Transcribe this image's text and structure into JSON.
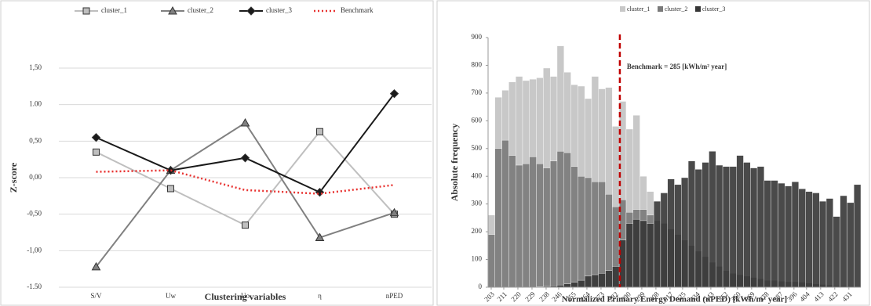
{
  "chart_data": [
    {
      "type": "line",
      "categories": [
        "S/V",
        "Uw",
        "Uo",
        "η",
        "nPED"
      ],
      "series": [
        {
          "name": "cluster_1",
          "color": "#bfbfbf",
          "marker": "square",
          "values": [
            0.35,
            -0.15,
            -0.65,
            0.63,
            -0.5
          ]
        },
        {
          "name": "cluster_2",
          "color": "#808080",
          "marker": "triangle",
          "values": [
            -1.22,
            0.1,
            0.75,
            -0.82,
            -0.48
          ]
        },
        {
          "name": "cluster_3",
          "color": "#1a1a1a",
          "marker": "diamond",
          "values": [
            0.55,
            0.1,
            0.27,
            -0.2,
            1.15
          ]
        },
        {
          "name": "Benchmark",
          "color": "#e8312f",
          "dash": "dotted",
          "values": [
            0.08,
            0.1,
            -0.17,
            -0.22,
            -0.1
          ]
        }
      ],
      "ylim": [
        -1.5,
        1.5
      ],
      "yticks": [
        {
          "value": -1.5,
          "label": "-1.50"
        },
        {
          "value": -1.0,
          "label": "-1,00"
        },
        {
          "value": -0.5,
          "label": "-0,50"
        },
        {
          "value": 0,
          "label": "0,00"
        },
        {
          "value": 0.5,
          "label": "0,50"
        },
        {
          "value": 1.0,
          "label": "1.00"
        },
        {
          "value": 1.5,
          "label": "1,50"
        }
      ],
      "ylabel": "Z-score",
      "xlabel": "Clustering variables",
      "grid": true,
      "legend": "top"
    },
    {
      "type": "histogram",
      "overlap": true,
      "bins": [
        201,
        205.4,
        209.8,
        214.2,
        218.6,
        223,
        227.4,
        231.8,
        236.2,
        240.6,
        245,
        249.4,
        253.8,
        258.2,
        262.6,
        267,
        271.4,
        275.8,
        280.2,
        284.6,
        289,
        293.4,
        297.8,
        302.2,
        306.6,
        311,
        315.4,
        319.8,
        324.2,
        328.6,
        333,
        337.4,
        341.8,
        346.2,
        350.6,
        355,
        359.4,
        363.8,
        368.2,
        372.6,
        377,
        381.4,
        385.8,
        390.2,
        394.6,
        399,
        403.4,
        407.8,
        412.2,
        416.6,
        421,
        425.4,
        429.8,
        434.2,
        438.6
      ],
      "series": [
        {
          "name": "cluster_1",
          "color": "#c8c8c8",
          "values": [
            260,
            685,
            710,
            740,
            760,
            745,
            750,
            755,
            790,
            760,
            870,
            775,
            730,
            725,
            680,
            760,
            715,
            720,
            580,
            670,
            570,
            620,
            400,
            345,
            200,
            150,
            100,
            60,
            30,
            20,
            10,
            5,
            3,
            2,
            0,
            0,
            0,
            0,
            0,
            0,
            0,
            0,
            0,
            0,
            0,
            0,
            0,
            0,
            0,
            0,
            0,
            0,
            0,
            0
          ]
        },
        {
          "name": "cluster_2",
          "color": "#7a7a7a",
          "values": [
            190,
            500,
            530,
            475,
            440,
            445,
            470,
            445,
            430,
            455,
            490,
            485,
            435,
            400,
            395,
            380,
            380,
            335,
            290,
            315,
            270,
            280,
            280,
            260,
            240,
            230,
            210,
            190,
            170,
            150,
            130,
            110,
            90,
            75,
            60,
            50,
            45,
            40,
            35,
            30,
            25,
            25,
            22,
            20,
            20,
            18,
            15,
            12,
            10,
            8,
            5,
            5,
            3,
            2
          ]
        },
        {
          "name": "cluster_3",
          "color": "#363636",
          "values": [
            0,
            0,
            0,
            0,
            0,
            0,
            0,
            2,
            3,
            5,
            8,
            12,
            18,
            25,
            40,
            45,
            50,
            60,
            75,
            170,
            230,
            245,
            240,
            230,
            310,
            340,
            390,
            370,
            395,
            455,
            425,
            450,
            490,
            440,
            435,
            435,
            475,
            450,
            430,
            435,
            385,
            385,
            375,
            365,
            380,
            355,
            345,
            340,
            310,
            320,
            255,
            330,
            305,
            370
          ]
        }
      ],
      "xlim": [
        201,
        438.6
      ],
      "xticks": [
        203,
        211,
        220,
        229,
        238,
        246,
        255,
        264,
        273,
        282,
        290,
        299,
        308,
        317,
        325,
        334,
        343,
        352,
        360,
        369,
        378,
        387,
        396,
        404,
        413,
        422,
        431
      ],
      "ylim": [
        0,
        900
      ],
      "yticks": [
        0,
        100,
        200,
        300,
        400,
        500,
        600,
        700,
        800,
        900
      ],
      "ylabel": "Absolute frequency",
      "xlabel": "Normalized Primary Energy Demand (nPED) [kWh/m² year]",
      "benchmark": 285,
      "benchmark_color": "#c00000",
      "annotation": "Benchmark = 285 [kWh/m² year]",
      "legend": "top"
    }
  ]
}
